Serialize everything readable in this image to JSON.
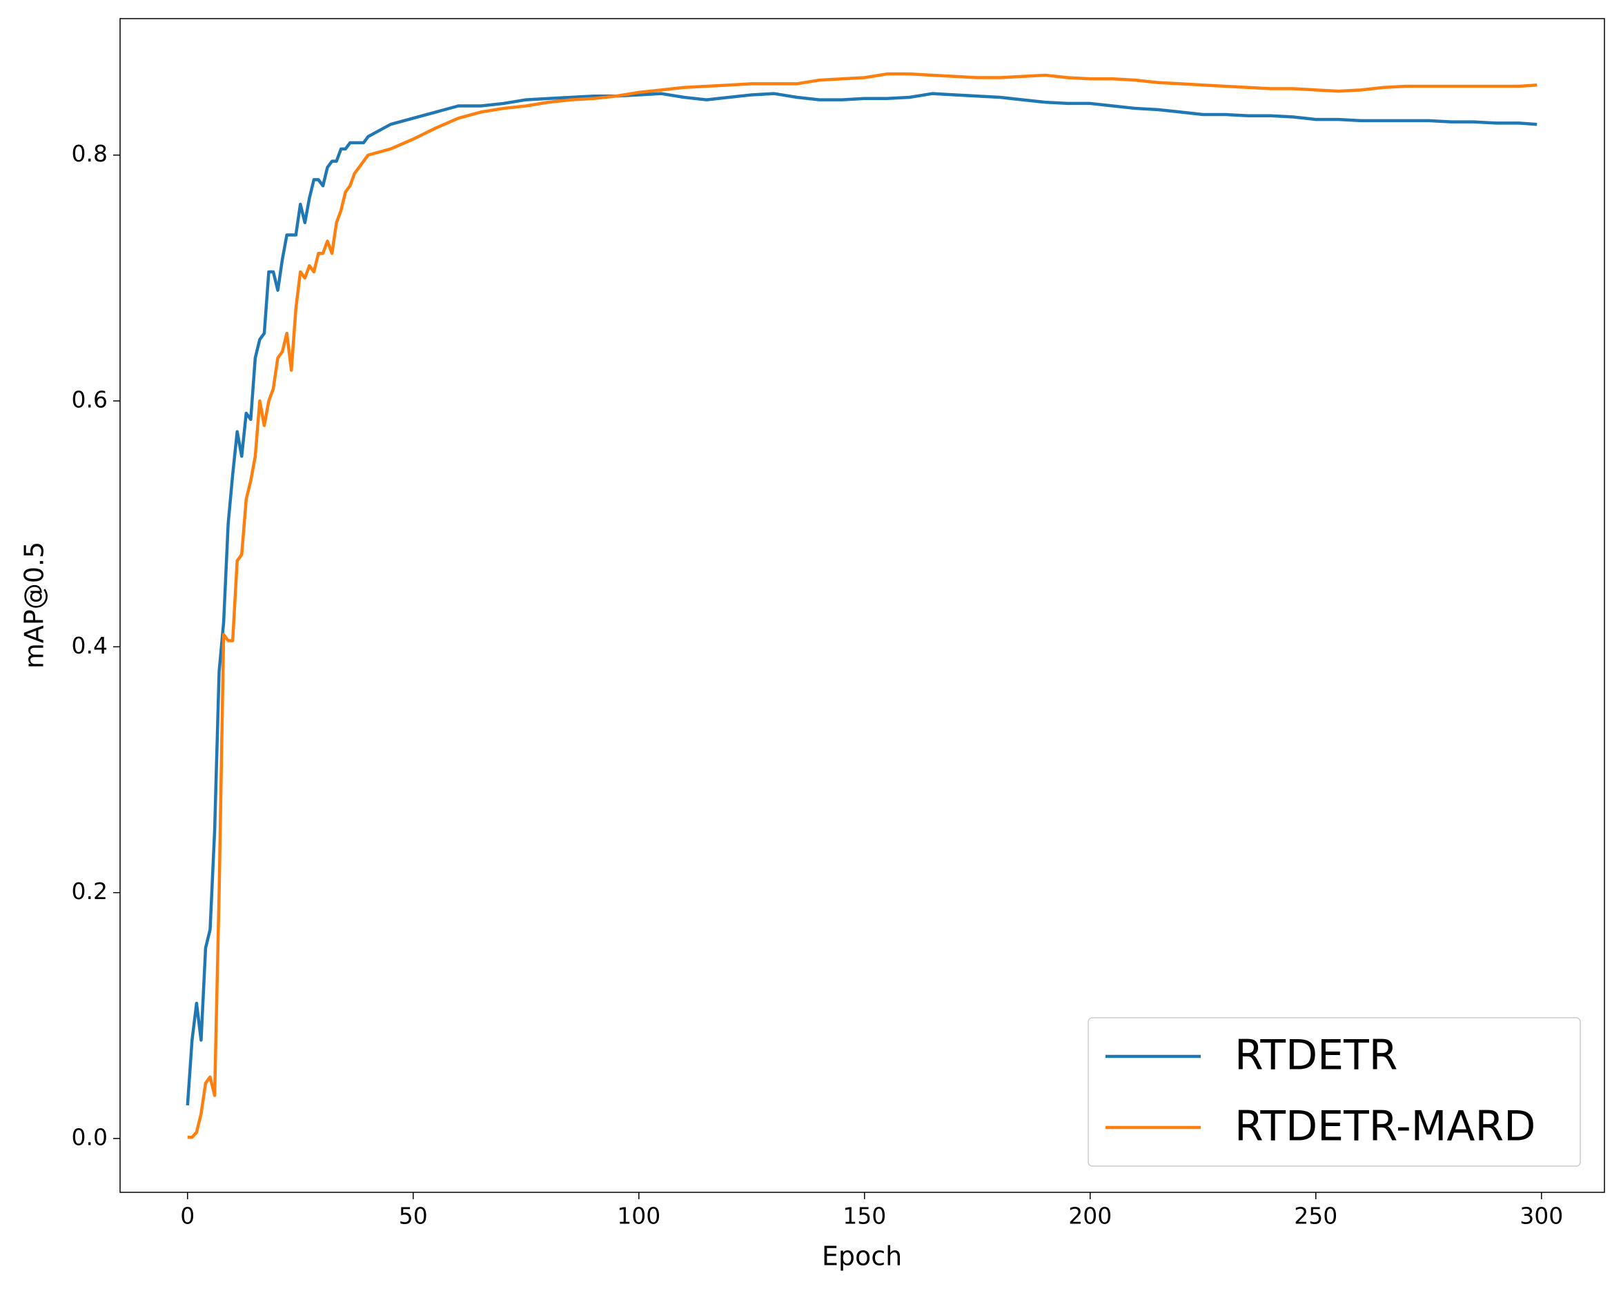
{
  "chart_data": {
    "type": "line",
    "x_label": "Epoch",
    "y_label": "mAP@0.5",
    "x": [
      0,
      1,
      2,
      3,
      4,
      5,
      6,
      7,
      8,
      9,
      10,
      11,
      12,
      13,
      14,
      15,
      16,
      17,
      18,
      19,
      20,
      21,
      22,
      23,
      24,
      25,
      26,
      27,
      28,
      29,
      30,
      31,
      32,
      33,
      34,
      35,
      36,
      37,
      38,
      39,
      40,
      45,
      50,
      55,
      60,
      65,
      70,
      75,
      80,
      85,
      90,
      95,
      100,
      105,
      110,
      115,
      120,
      125,
      130,
      135,
      140,
      145,
      150,
      155,
      160,
      165,
      170,
      175,
      180,
      185,
      190,
      195,
      200,
      205,
      210,
      215,
      220,
      225,
      230,
      235,
      240,
      245,
      250,
      255,
      260,
      265,
      270,
      275,
      280,
      285,
      290,
      295,
      299
    ],
    "series": [
      {
        "name": "RTDETR",
        "color": "#1f77b4",
        "values": [
          0.027,
          0.08,
          0.11,
          0.08,
          0.155,
          0.17,
          0.25,
          0.38,
          0.42,
          0.5,
          0.54,
          0.575,
          0.555,
          0.59,
          0.585,
          0.635,
          0.65,
          0.655,
          0.705,
          0.705,
          0.69,
          0.715,
          0.735,
          0.735,
          0.735,
          0.76,
          0.745,
          0.765,
          0.78,
          0.78,
          0.775,
          0.79,
          0.795,
          0.795,
          0.805,
          0.805,
          0.81,
          0.81,
          0.81,
          0.81,
          0.815,
          0.825,
          0.83,
          0.835,
          0.84,
          0.84,
          0.842,
          0.845,
          0.846,
          0.847,
          0.848,
          0.848,
          0.849,
          0.85,
          0.847,
          0.845,
          0.847,
          0.849,
          0.85,
          0.847,
          0.845,
          0.845,
          0.846,
          0.846,
          0.847,
          0.85,
          0.849,
          0.848,
          0.847,
          0.845,
          0.843,
          0.842,
          0.842,
          0.84,
          0.838,
          0.837,
          0.835,
          0.833,
          0.833,
          0.832,
          0.832,
          0.831,
          0.829,
          0.829,
          0.828,
          0.828,
          0.828,
          0.828,
          0.827,
          0.827,
          0.826,
          0.826,
          0.825
        ]
      },
      {
        "name": "RTDETR-MARD",
        "color": "#ff7f0e",
        "values": [
          0.001,
          0.001,
          0.005,
          0.02,
          0.045,
          0.05,
          0.035,
          0.2,
          0.41,
          0.405,
          0.405,
          0.47,
          0.475,
          0.52,
          0.535,
          0.555,
          0.6,
          0.58,
          0.6,
          0.61,
          0.635,
          0.64,
          0.655,
          0.625,
          0.675,
          0.705,
          0.7,
          0.71,
          0.705,
          0.72,
          0.72,
          0.73,
          0.72,
          0.745,
          0.755,
          0.77,
          0.775,
          0.785,
          0.79,
          0.795,
          0.8,
          0.805,
          0.813,
          0.822,
          0.83,
          0.835,
          0.838,
          0.84,
          0.843,
          0.845,
          0.846,
          0.848,
          0.851,
          0.853,
          0.855,
          0.856,
          0.857,
          0.858,
          0.858,
          0.858,
          0.861,
          0.862,
          0.863,
          0.866,
          0.866,
          0.865,
          0.864,
          0.863,
          0.863,
          0.864,
          0.865,
          0.863,
          0.862,
          0.862,
          0.861,
          0.859,
          0.858,
          0.857,
          0.856,
          0.855,
          0.854,
          0.854,
          0.853,
          0.852,
          0.853,
          0.855,
          0.856,
          0.856,
          0.856,
          0.856,
          0.856,
          0.856,
          0.857
        ]
      }
    ],
    "xlim": [
      -14.95,
      313.95
    ],
    "ylim": [
      -0.0438,
      0.911
    ],
    "xticks": [
      0,
      50,
      100,
      150,
      200,
      250,
      300
    ],
    "yticks": [
      {
        "value": 0,
        "label": "0.0"
      },
      0.2,
      0.4,
      0.6,
      0.8
    ],
    "grid": false,
    "legend": "lower right"
  }
}
